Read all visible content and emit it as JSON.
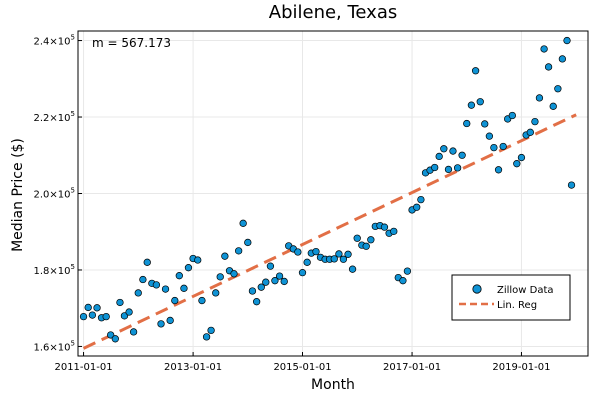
{
  "chart_data": {
    "type": "scatter",
    "title": "Abilene, Texas",
    "xlabel": "Month",
    "ylabel": "Median Price ($)",
    "annotation": "m = 567.173",
    "x_ticks": [
      "2011-01-01",
      "2013-01-01",
      "2015-01-01",
      "2017-01-01",
      "2019-01-01"
    ],
    "y_ticks": [
      {
        "value": 160000,
        "mantissa": "1.6",
        "base": "×10",
        "exp": "5"
      },
      {
        "value": 180000,
        "mantissa": "1.8",
        "base": "×10",
        "exp": "5"
      },
      {
        "value": 200000,
        "mantissa": "2.0",
        "base": "×10",
        "exp": "5"
      },
      {
        "value": 220000,
        "mantissa": "2.2",
        "base": "×10",
        "exp": "5"
      },
      {
        "value": 240000,
        "mantissa": "2.4",
        "base": "×10",
        "exp": "5"
      }
    ],
    "xlim": [
      "2010-11-25",
      "2020-03-20"
    ],
    "ylim": [
      157500,
      242500
    ],
    "grid": true,
    "legend_position": "bottom-right",
    "series": [
      {
        "name": "Zillow Data",
        "kind": "scatter",
        "color": "#0f93d5",
        "x": [
          "2011-01-01",
          "2011-02-01",
          "2011-03-01",
          "2011-04-01",
          "2011-05-01",
          "2011-06-01",
          "2011-07-01",
          "2011-08-01",
          "2011-09-01",
          "2011-10-01",
          "2011-11-01",
          "2011-12-01",
          "2012-01-01",
          "2012-02-01",
          "2012-03-01",
          "2012-04-01",
          "2012-05-01",
          "2012-06-01",
          "2012-07-01",
          "2012-08-01",
          "2012-09-01",
          "2012-10-01",
          "2012-11-01",
          "2012-12-01",
          "2013-01-01",
          "2013-02-01",
          "2013-03-01",
          "2013-04-01",
          "2013-05-01",
          "2013-06-01",
          "2013-07-01",
          "2013-08-01",
          "2013-09-01",
          "2013-10-01",
          "2013-11-01",
          "2013-12-01",
          "2014-01-01",
          "2014-02-01",
          "2014-03-01",
          "2014-04-01",
          "2014-05-01",
          "2014-06-01",
          "2014-07-01",
          "2014-08-01",
          "2014-09-01",
          "2014-10-01",
          "2014-11-01",
          "2014-12-01",
          "2015-01-01",
          "2015-02-01",
          "2015-03-01",
          "2015-04-01",
          "2015-05-01",
          "2015-06-01",
          "2015-07-01",
          "2015-08-01",
          "2015-09-01",
          "2015-10-01",
          "2015-11-01",
          "2015-12-01",
          "2016-01-01",
          "2016-02-01",
          "2016-03-01",
          "2016-04-01",
          "2016-05-01",
          "2016-06-01",
          "2016-07-01",
          "2016-08-01",
          "2016-09-01",
          "2016-10-01",
          "2016-11-01",
          "2016-12-01",
          "2017-01-01",
          "2017-02-01",
          "2017-03-01",
          "2017-04-01",
          "2017-05-01",
          "2017-06-01",
          "2017-07-01",
          "2017-08-01",
          "2017-09-01",
          "2017-10-01",
          "2017-11-01",
          "2017-12-01",
          "2018-01-01",
          "2018-02-01",
          "2018-03-01",
          "2018-04-01",
          "2018-05-01",
          "2018-06-01",
          "2018-07-01",
          "2018-08-01",
          "2018-09-01",
          "2018-10-01",
          "2018-11-01",
          "2018-12-01",
          "2019-01-01",
          "2019-02-01",
          "2019-03-01",
          "2019-04-01",
          "2019-05-01",
          "2019-06-01",
          "2019-07-01",
          "2019-08-01",
          "2019-09-01",
          "2019-10-01",
          "2019-11-01",
          "2019-12-01"
        ],
        "y": [
          167800,
          170200,
          168200,
          170100,
          167500,
          167800,
          163000,
          162000,
          171500,
          168000,
          169000,
          163800,
          174000,
          177500,
          182000,
          176500,
          176100,
          165900,
          175000,
          166800,
          172000,
          178500,
          175200,
          180600,
          183000,
          182600,
          172000,
          162500,
          164200,
          174000,
          178200,
          183600,
          179800,
          179000,
          185000,
          192200,
          187200,
          174500,
          171700,
          175500,
          176800,
          181000,
          177200,
          178400,
          177000,
          186300,
          185500,
          184700,
          179300,
          182000,
          184400,
          184800,
          183300,
          182800,
          182800,
          182900,
          184200,
          182800,
          184100,
          180200,
          188300,
          186500,
          186200,
          187900,
          191400,
          191600,
          191200,
          189600,
          190100,
          178000,
          177200,
          179700,
          195700,
          196400,
          198400,
          205400,
          206100,
          206800,
          209700,
          211700,
          206300,
          211100,
          206700,
          210000,
          218300,
          223100,
          232100,
          224000,
          218200,
          215000,
          212000,
          206200,
          212300,
          219500,
          220400,
          207800,
          209400,
          215300,
          216000,
          218800,
          225000,
          237800,
          233100,
          222800,
          227400,
          235200,
          240000,
          202200
        ]
      },
      {
        "name": "Lin. Reg",
        "kind": "line",
        "color": "#e26f46",
        "x": [
          "2011-01-01",
          "2020-01-01"
        ],
        "y": [
          159500,
          220600
        ]
      }
    ]
  }
}
